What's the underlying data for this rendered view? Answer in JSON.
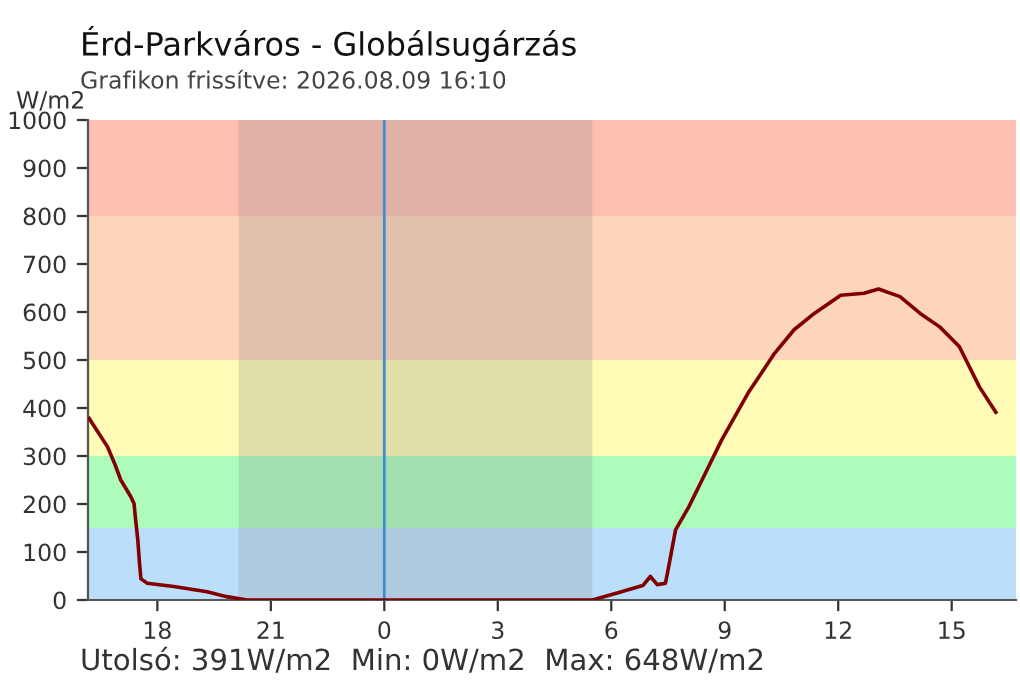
{
  "chart_data": {
    "type": "line",
    "title": "Érd-Parkváros - Globálsugárzás",
    "subtitle": "Grafikon frissítve: 2026.08.09 16:10",
    "ylabel": "W/m2",
    "annotations": [
      "Utolsó: 391W/m2  Min: 0W/m2  Max: 648W/m2"
    ],
    "x": [
      "2026-08-08T16:12",
      "2026-08-08T16:41",
      "2026-08-08T16:52",
      "2026-08-08T17:02",
      "2026-08-08T17:18",
      "2026-08-08T17:23",
      "2026-08-08T17:25",
      "2026-08-08T17:29",
      "2026-08-08T17:32",
      "2026-08-08T17:34",
      "2026-08-08T17:44",
      "2026-08-08T18:26",
      "2026-08-08T19:19",
      "2026-08-08T19:50",
      "2026-08-08T20:22",
      "2026-08-09T05:30",
      "2026-08-09T06:08",
      "2026-08-09T06:50",
      "2026-08-09T07:02",
      "2026-08-09T07:13",
      "2026-08-09T07:26",
      "2026-08-09T07:31",
      "2026-08-09T07:42",
      "2026-08-09T08:03",
      "2026-08-09T08:24",
      "2026-08-09T08:55",
      "2026-08-09T09:37",
      "2026-08-09T10:19",
      "2026-08-09T10:50",
      "2026-08-09T11:22",
      "2026-08-09T12:04",
      "2026-08-09T12:41",
      "2026-08-09T13:04",
      "2026-08-09T13:38",
      "2026-08-09T14:10",
      "2026-08-09T14:41",
      "2026-08-09T15:12",
      "2026-08-09T15:44",
      "2026-08-09T16:10"
    ],
    "series": [
      {
        "color": "#800000",
        "values": [
          378,
          319,
          285,
          250,
          215,
          201,
          174,
          125,
          72,
          44,
          35,
          28,
          17,
          7,
          0,
          0,
          14,
          30,
          49,
          32,
          35,
          69,
          146,
          194,
          250,
          333,
          431,
          514,
          563,
          597,
          635,
          639,
          648,
          632,
          597,
          569,
          528,
          444,
          391
        ]
      }
    ],
    "xlim": [
      "2026-08-08T16:10",
      "2026-08-09T16:42"
    ],
    "xticks": [
      {
        "value": "2026-08-08T18:00",
        "label": "18"
      },
      {
        "value": "2026-08-08T21:00",
        "label": "21"
      },
      {
        "value": "2026-08-09T00:00",
        "label": "0"
      },
      {
        "value": "2026-08-09T03:00",
        "label": "3"
      },
      {
        "value": "2026-08-09T06:00",
        "label": "6"
      },
      {
        "value": "2026-08-09T09:00",
        "label": "9"
      },
      {
        "value": "2026-08-09T12:00",
        "label": "12"
      },
      {
        "value": "2026-08-09T15:00",
        "label": "15"
      }
    ],
    "ylim": [
      0,
      1000
    ],
    "yticks": [
      0,
      100,
      200,
      300,
      400,
      500,
      600,
      700,
      800,
      900,
      1000
    ],
    "bands": [
      {
        "axis": "y",
        "from": 0,
        "to": 150,
        "color": "#bbdffa"
      },
      {
        "axis": "y",
        "from": 150,
        "to": 300,
        "color": "#adfcbb"
      },
      {
        "axis": "y",
        "from": 300,
        "to": 500,
        "color": "#fdfbb5"
      },
      {
        "axis": "y",
        "from": 500,
        "to": 800,
        "color": "#fdd5bb"
      },
      {
        "axis": "y",
        "from": 800,
        "to": 1000,
        "color": "#fdbfb0"
      },
      {
        "axis": "x",
        "from": "2026-08-08T20:09",
        "to": "2026-08-09T05:30",
        "color": "#8c8c8c"
      }
    ],
    "ref_lines": [
      {
        "axis": "x",
        "value": "2026-08-09T00:00",
        "color": "#3b8ed0"
      }
    ],
    "grid": false,
    "legend": false,
    "marker": "none",
    "line_style": "solid"
  }
}
